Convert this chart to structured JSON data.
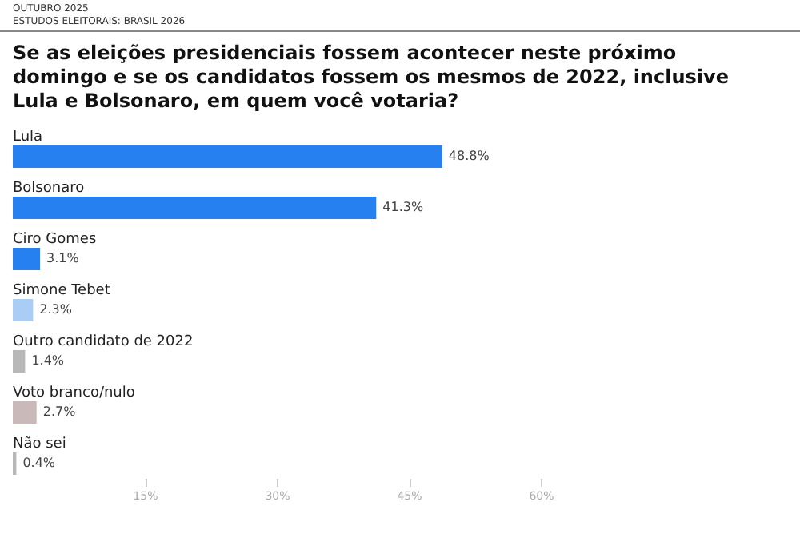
{
  "chart_data": {
    "type": "bar",
    "orientation": "horizontal",
    "title": "Se as eleições presidenciais fossem acontecer neste próximo domingo e se os candidatos fossem os mesmos de 2022, inclusive Lula e Bolsonaro, em quem você votaria?",
    "annotations": [
      "OUTUBRO 2025",
      "ESTUDOS ELEITORAIS: BRASIL 2026"
    ],
    "categories": [
      "Lula",
      "Bolsonaro",
      "Ciro Gomes",
      "Simone Tebet",
      "Outro candidato de 2022",
      "Voto branco/nulo",
      "Não sei"
    ],
    "values": [
      48.8,
      41.3,
      3.1,
      2.3,
      1.4,
      2.7,
      0.4
    ],
    "colors": [
      "#2680f0",
      "#2680f0",
      "#2680f0",
      "#a9cdf5",
      "#b8b8b8",
      "#c9b9b9",
      "#b8b8b8"
    ],
    "value_labels": [
      "48.8%",
      "41.3%",
      "3.1%",
      "2.3%",
      "1.4%",
      "2.7%",
      "0.4%"
    ],
    "xlim": [
      0,
      60
    ],
    "xticks": [
      {
        "value": 15,
        "label": "15%"
      },
      {
        "value": 30,
        "label": "30%"
      },
      {
        "value": 45,
        "label": "45%"
      },
      {
        "value": 60,
        "label": "60%"
      }
    ],
    "grid": false
  }
}
